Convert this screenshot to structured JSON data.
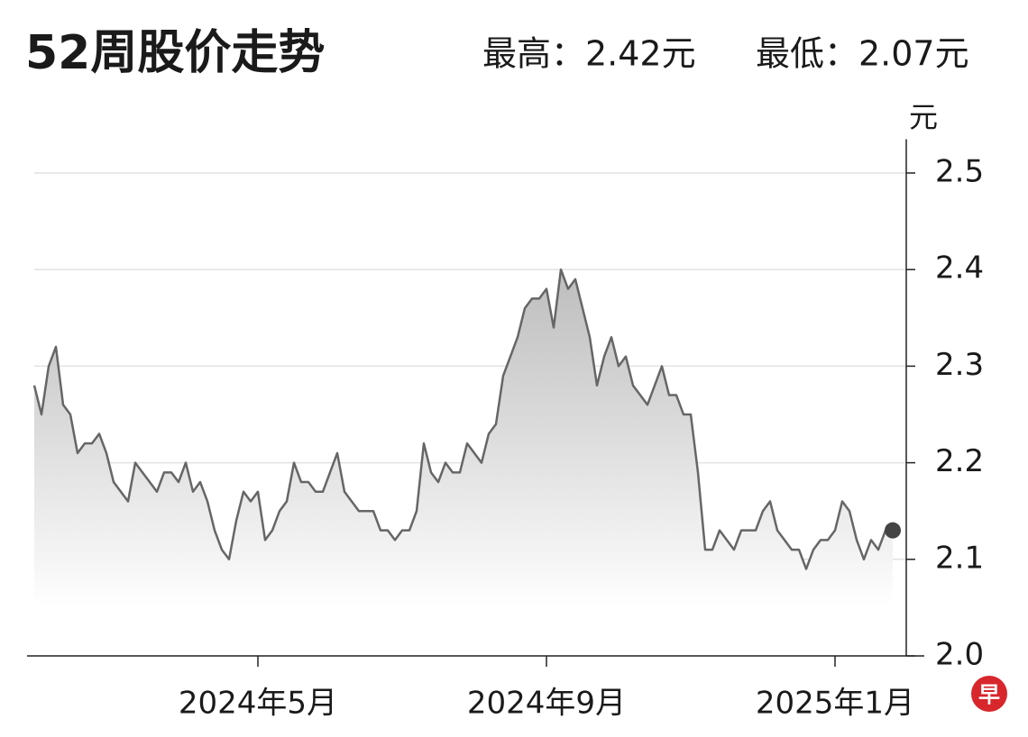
{
  "chart_data": {
    "type": "line",
    "title": "52周股价走势",
    "annotations": [
      "最高：2.42元",
      "最低：2.07元"
    ],
    "ylabel": "元",
    "categories": [
      null,
      null,
      null,
      null,
      null,
      null,
      null,
      null,
      null,
      null,
      null,
      null,
      null,
      null,
      null,
      null,
      null,
      null,
      null,
      null,
      null,
      null,
      null,
      null,
      null,
      null,
      null,
      null,
      null,
      null,
      null,
      "2024年5月",
      null,
      null,
      null,
      null,
      null,
      null,
      null,
      null,
      null,
      null,
      null,
      null,
      null,
      null,
      null,
      null,
      null,
      null,
      null,
      null,
      null,
      null,
      null,
      null,
      null,
      null,
      null,
      null,
      null,
      null,
      null,
      null,
      null,
      null,
      null,
      null,
      null,
      null,
      null,
      "2024年9月",
      null,
      null,
      null,
      null,
      null,
      null,
      null,
      null,
      null,
      null,
      null,
      null,
      null,
      null,
      null,
      null,
      null,
      null,
      null,
      null,
      null,
      null,
      null,
      null,
      null,
      null,
      null,
      null,
      null,
      null,
      null,
      null,
      null,
      null,
      null,
      null,
      null,
      null,
      null,
      "2025年1月",
      null,
      null,
      null,
      null,
      null,
      null,
      null,
      null
    ],
    "series": [
      {
        "color": "#666666",
        "values": [
          2.28,
          2.25,
          2.3,
          2.32,
          2.26,
          2.25,
          2.21,
          2.22,
          2.22,
          2.23,
          2.21,
          2.18,
          2.17,
          2.16,
          2.2,
          2.19,
          2.18,
          2.17,
          2.19,
          2.19,
          2.18,
          2.2,
          2.17,
          2.18,
          2.16,
          2.13,
          2.11,
          2.1,
          2.14,
          2.17,
          2.16,
          2.17,
          2.12,
          2.13,
          2.15,
          2.16,
          2.2,
          2.18,
          2.18,
          2.17,
          2.17,
          2.19,
          2.21,
          2.17,
          2.16,
          2.15,
          2.15,
          2.15,
          2.13,
          2.13,
          2.12,
          2.13,
          2.13,
          2.15,
          2.22,
          2.19,
          2.18,
          2.2,
          2.19,
          2.19,
          2.22,
          2.21,
          2.2,
          2.23,
          2.24,
          2.29,
          2.31,
          2.33,
          2.36,
          2.37,
          2.37,
          2.38,
          2.34,
          2.4,
          2.38,
          2.39,
          2.36,
          2.33,
          2.28,
          2.31,
          2.33,
          2.3,
          2.31,
          2.28,
          2.27,
          2.26,
          2.28,
          2.3,
          2.27,
          2.27,
          2.25,
          2.25,
          2.19,
          2.11,
          2.11,
          2.13,
          2.12,
          2.11,
          2.13,
          2.13,
          2.13,
          2.15,
          2.16,
          2.13,
          2.12,
          2.11,
          2.11,
          2.09,
          2.11,
          2.12,
          2.12,
          2.13,
          2.16,
          2.15,
          2.12,
          2.1,
          2.12,
          2.11,
          2.13,
          2.13
        ]
      }
    ],
    "ylim": [
      2,
      2.535
    ],
    "yticks": [
      {
        "value": 2,
        "label": "2.0"
      },
      2.1,
      2.2,
      2.3,
      2.4,
      2.5
    ],
    "grid": true,
    "end_marker_color": "#444444"
  },
  "logo": "早"
}
